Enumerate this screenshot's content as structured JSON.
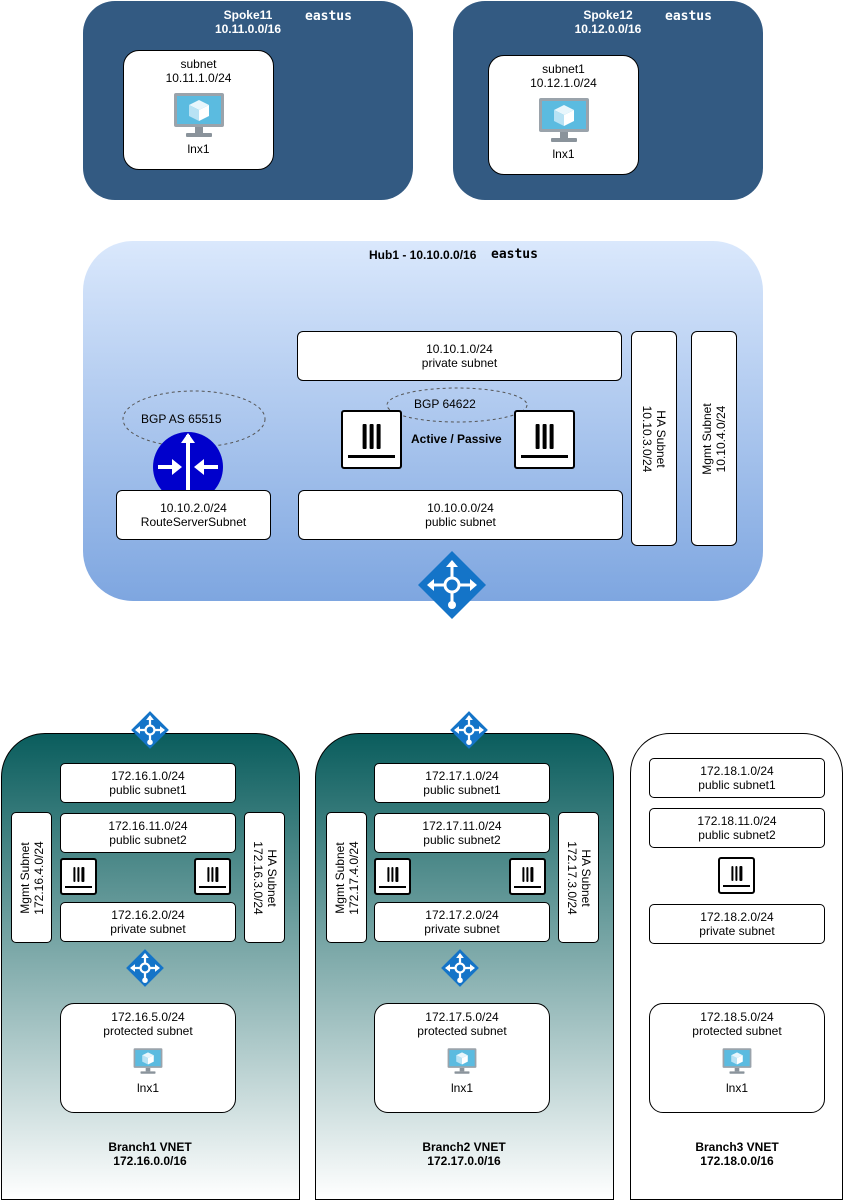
{
  "spokes": [
    {
      "name": "Spoke11",
      "cidr": "10.11.0.0/16",
      "region": "eastus",
      "subnet": {
        "name": "subnet",
        "cidr": "10.11.1.0/24",
        "vm": "lnx1"
      }
    },
    {
      "name": "Spoke12",
      "cidr": "10.12.0.0/16",
      "region": "eastus",
      "subnet": {
        "name": "subnet1",
        "cidr": "10.12.1.0/24",
        "vm": "lnx1"
      }
    }
  ],
  "hub": {
    "title": "Hub1 - 10.10.0.0/16",
    "region": "eastus",
    "private_subnet": {
      "cidr": "10.10.1.0/24",
      "name": "private subnet"
    },
    "public_subnet": {
      "cidr": "10.10.0.0/24",
      "name": "public subnet"
    },
    "route_server_subnet": {
      "cidr": "10.10.2.0/24",
      "name": "RouteServerSubnet"
    },
    "ha_subnet": {
      "name": "HA Subnet",
      "cidr": "10.10.3.0/24"
    },
    "mgmt_subnet": {
      "name": "Mgmt Subnet",
      "cidr": "10.10.4.0/24"
    },
    "bgp_route_server": "BGP AS 65515",
    "bgp_fw": "BGP 64622",
    "fw_mode": "Active / Passive"
  },
  "branches": [
    {
      "title": "Branch1 VNET",
      "cidr": "172.16.0.0/16",
      "public1": {
        "cidr": "172.16.1.0/24",
        "name": "public subnet1"
      },
      "public2": {
        "cidr": "172.16.11.0/24",
        "name": "public subnet2"
      },
      "private": {
        "cidr": "172.16.2.0/24",
        "name": "private subnet"
      },
      "protected": {
        "cidr": "172.16.5.0/24",
        "name": "protected subnet",
        "vm": "lnx1"
      },
      "mgmt": {
        "name": "Mgmt Subnet",
        "cidr": "172.16.4.0/24"
      },
      "ha": {
        "name": "HA Subnet",
        "cidr": "172.16.3.0/24"
      }
    },
    {
      "title": "Branch2 VNET",
      "cidr": "172.17.0.0/16",
      "public1": {
        "cidr": "172.17.1.0/24",
        "name": "public subnet1"
      },
      "public2": {
        "cidr": "172.17.11.0/24",
        "name": "public subnet2"
      },
      "private": {
        "cidr": "172.17.2.0/24",
        "name": "private subnet"
      },
      "protected": {
        "cidr": "172.17.5.0/24",
        "name": "protected subnet",
        "vm": "lnx1"
      },
      "mgmt": {
        "name": "Mgmt Subnet",
        "cidr": "172.17.4.0/24"
      },
      "ha": {
        "name": "HA Subnet",
        "cidr": "172.17.3.0/24"
      }
    },
    {
      "title": "Branch3 VNET",
      "cidr": "172.18.0.0/16",
      "public1": {
        "cidr": "172.18.1.0/24",
        "name": "public subnet1"
      },
      "public2": {
        "cidr": "172.18.11.0/24",
        "name": "public subnet2"
      },
      "private": {
        "cidr": "172.18.2.0/24",
        "name": "private subnet"
      },
      "protected": {
        "cidr": "172.18.5.0/24",
        "name": "protected subnet",
        "vm": "lnx1"
      }
    }
  ],
  "colors": {
    "spoke_fill": "#335a82",
    "hub_gradient_top": "#dae8fc",
    "hub_gradient_bottom": "#7ea6e0",
    "branch_gradient_top": "#0a5d5d",
    "gateway_icon": "#1474c8",
    "route_server_icon": "#0000cc",
    "vm_screen": "#5bbbe0"
  },
  "icons": [
    "vm-icon",
    "firewall-icon",
    "vnet-gateway-icon",
    "route-server-icon"
  ]
}
